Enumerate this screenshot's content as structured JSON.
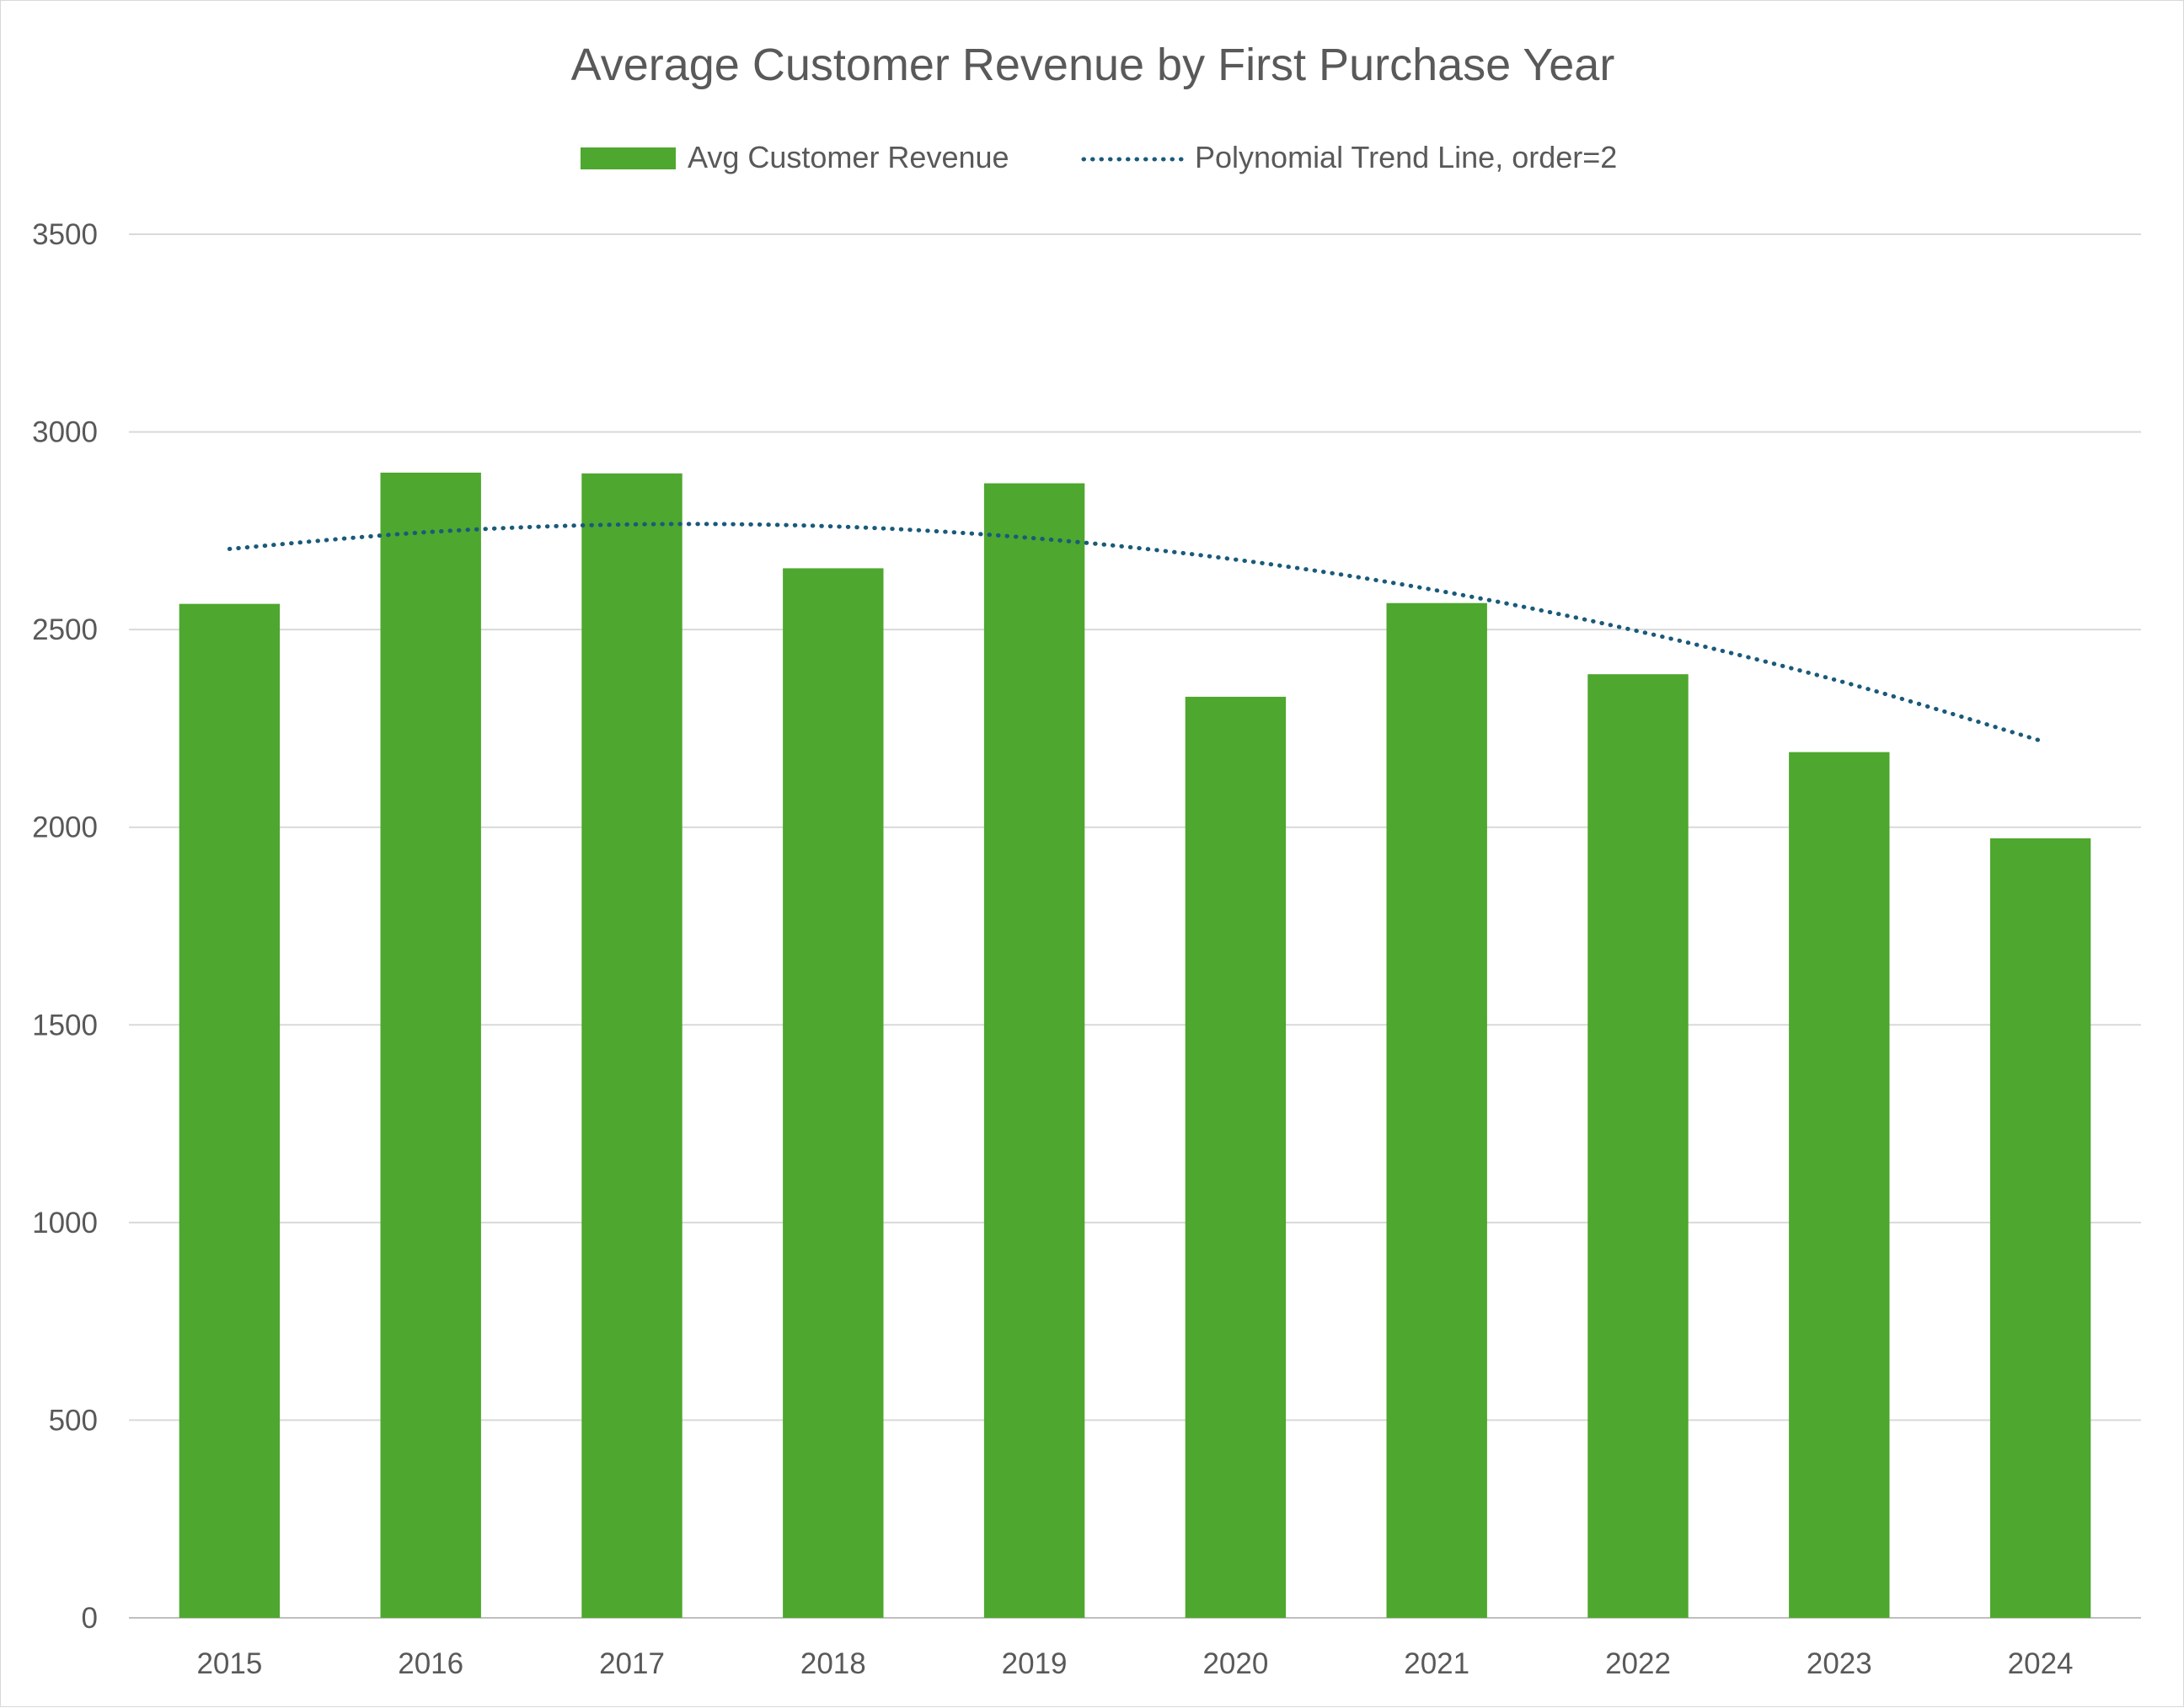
{
  "chart_data": {
    "type": "bar",
    "title": "Average Customer Revenue by First Purchase Year",
    "xlabel": "",
    "ylabel": "",
    "categories": [
      "2015",
      "2016",
      "2017",
      "2018",
      "2019",
      "2020",
      "2021",
      "2022",
      "2023",
      "2024"
    ],
    "series": [
      {
        "name": "Avg Customer Revenue",
        "type": "bar",
        "color": "#4ea72e",
        "values": [
          2565,
          2897,
          2895,
          2655,
          2870,
          2330,
          2567,
          2387,
          2190,
          1972
        ]
      },
      {
        "name": "Polynomial Trend Line, order=2",
        "type": "line",
        "style": "dotted",
        "color": "#1a5a7a",
        "values": [
          2704,
          2747,
          2766,
          2761,
          2731,
          2677,
          2599,
          2496,
          2370,
          2219
        ]
      }
    ],
    "ylim": [
      0,
      3500
    ],
    "yticks": [
      "0",
      "500",
      "1000",
      "1500",
      "2000",
      "2500",
      "3000",
      "3500"
    ],
    "grid": true,
    "legend_position": "top"
  }
}
